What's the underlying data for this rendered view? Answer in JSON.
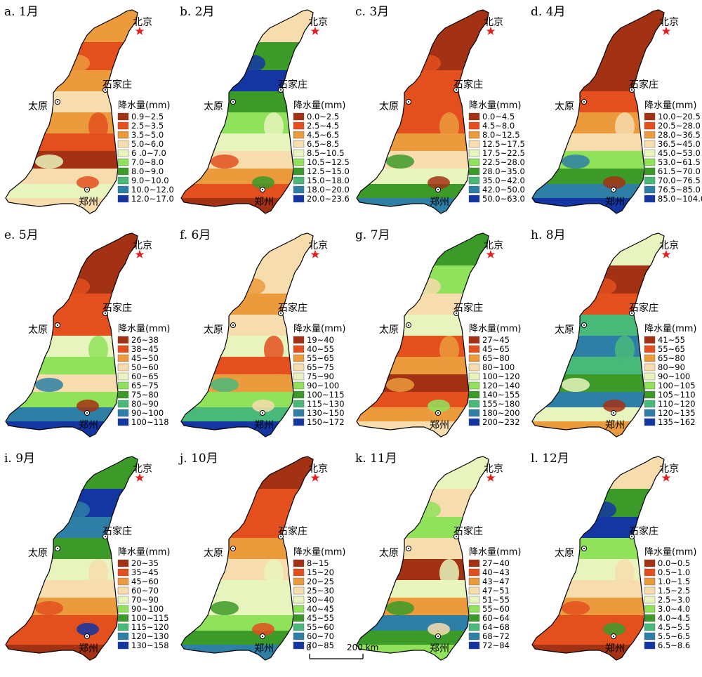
{
  "palette": [
    "#a33114",
    "#e3501e",
    "#eb9a3c",
    "#f7dcae",
    "#e8f4bd",
    "#8fe25a",
    "#3c9a29",
    "#49b97a",
    "#2e7fa5",
    "#1336a3"
  ],
  "cities": {
    "beijing": "北京",
    "shijiazhuang": "石家庄",
    "taiyuan": "太原",
    "zhengzhou": "郑州"
  },
  "legend_title": "降水量(mm)",
  "scale_bar": {
    "zero": "0",
    "label": "200 km"
  },
  "panels": [
    {
      "title": "a. 1月",
      "classes": [
        "0.9~2.5",
        "2.5~3.5",
        "3.5~5.0",
        "5.0~6.0",
        "6 .0~7.0",
        "7.0~8.0",
        "8.0~9.0",
        "9.0~10.0",
        "10.0~12.0",
        "12.0~17.0"
      ],
      "zones": [
        2,
        1,
        2,
        3,
        2,
        1,
        0,
        3,
        4,
        3
      ]
    },
    {
      "title": "b. 2月",
      "classes": [
        "0.0~2.5",
        "2.5~4.5",
        "4.5~6.5",
        "6.5~8.5",
        "8.5~10.5",
        "10.5~12.5",
        "12.5~15.0",
        "15.0~18.0",
        "18.0~20.0",
        "20.0~23.6"
      ],
      "zones": [
        3,
        6,
        9,
        6,
        5,
        4,
        3,
        2,
        1,
        0
      ]
    },
    {
      "title": "c. 3月",
      "classes": [
        "0.0~4.5",
        "4.5~8.0",
        "8.0~12.5",
        "12.5~17.5",
        "17.5~22.5",
        "22.5~28.0",
        "28.0~35.0",
        "35.0~42.0",
        "42.0~50.0",
        "50.0~63.0"
      ],
      "zones": [
        0,
        0,
        1,
        1,
        1,
        2,
        3,
        4,
        6,
        8
      ]
    },
    {
      "title": "d. 4月",
      "classes": [
        "10.0~20.5",
        "20.5~28.0",
        "28.0~36.5",
        "36.5~45.0",
        "45.0~53.0",
        "53.0~61.5",
        "61.5~70.0",
        "70.0~76.5",
        "76.5~85.0",
        "85.0~104.0"
      ],
      "zones": [
        0,
        0,
        0,
        1,
        2,
        3,
        5,
        6,
        8,
        9
      ]
    },
    {
      "title": "e. 5月",
      "classes": [
        "26~38",
        "38~45",
        "45~50",
        "50~60",
        "60~65",
        "65~75",
        "75~80",
        "80~90",
        "90~100",
        "100~118"
      ],
      "zones": [
        0,
        0,
        1,
        1,
        4,
        5,
        3,
        5,
        8,
        9
      ]
    },
    {
      "title": "f. 6月",
      "classes": [
        "19~40",
        "40~55",
        "55~65",
        "65~75",
        "75~90",
        "90~100",
        "100~115",
        "115~130",
        "130~150",
        "150~172"
      ],
      "zones": [
        3,
        3,
        2,
        3,
        4,
        1,
        2,
        5,
        7,
        9
      ]
    },
    {
      "title": "g. 7月",
      "classes": [
        "27~45",
        "45~65",
        "65~80",
        "80~100",
        "100~120",
        "120~140",
        "140~155",
        "155~180",
        "180~200",
        "200~232"
      ],
      "zones": [
        6,
        5,
        3,
        4,
        1,
        2,
        0,
        1,
        2,
        3
      ]
    },
    {
      "title": "h. 8月",
      "classes": [
        "41~55",
        "55~65",
        "65~80",
        "80~90",
        "90~100",
        "100~105",
        "105~110",
        "110~120",
        "120~135",
        "135~162"
      ],
      "zones": [
        4,
        0,
        1,
        7,
        8,
        7,
        6,
        8,
        4,
        2
      ]
    },
    {
      "title": "i. 9月",
      "classes": [
        "20~35",
        "35~45",
        "45~60",
        "60~70",
        "70~90",
        "90~100",
        "100~115",
        "115~120",
        "120~130",
        "130~158"
      ],
      "zones": [
        6,
        9,
        8,
        6,
        4,
        3,
        2,
        1,
        1,
        0
      ]
    },
    {
      "title": "j. 10月",
      "classes": [
        "8~15",
        "15~20",
        "20~25",
        "25~30",
        "30~40",
        "40~45",
        "45~55",
        "55~60",
        "60~70",
        "70~85"
      ],
      "zones": [
        0,
        1,
        1,
        2,
        3,
        4,
        4,
        5,
        6,
        8
      ]
    },
    {
      "title": "k. 11月",
      "classes": [
        "27~40",
        "40~43",
        "43~47",
        "47~51",
        "51~55",
        "55~60",
        "60~64",
        "64~68",
        "68~72",
        "72~84"
      ],
      "zones": [
        4,
        3,
        5,
        3,
        0,
        4,
        2,
        8,
        6,
        5
      ]
    },
    {
      "title": "l. 12月",
      "classes": [
        "0.0~0.5",
        "0.5~1.0",
        "1.0~1.5",
        "1.5~2.5",
        "2.5~3.0",
        "3.0~4.0",
        "4.0~4.5",
        "4.5~5.5",
        "5.5~6.5",
        "6.5~8.6"
      ],
      "zones": [
        3,
        6,
        9,
        5,
        4,
        3,
        2,
        1,
        1,
        0
      ]
    }
  ]
}
